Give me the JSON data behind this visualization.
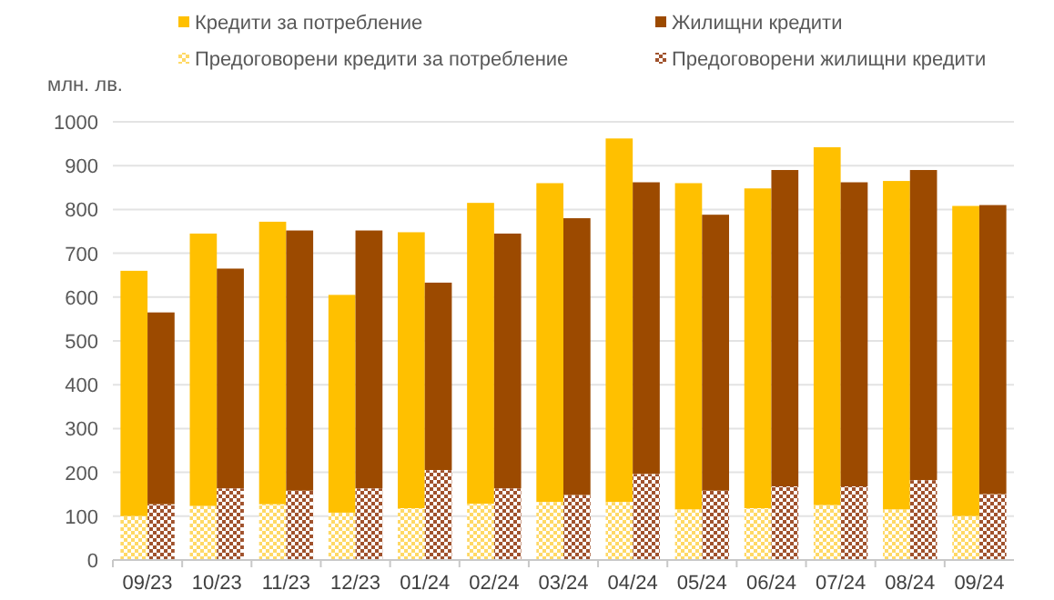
{
  "chart_data": {
    "type": "bar",
    "ylabel": "млн. лв.",
    "categories": [
      "09/23",
      "10/23",
      "11/23",
      "12/23",
      "01/24",
      "02/24",
      "03/24",
      "04/24",
      "05/24",
      "06/24",
      "07/24",
      "08/24",
      "09/24"
    ],
    "series": [
      {
        "name": "Кредити за потребление",
        "color": "#ffc000",
        "base": [
          100,
          123,
          127,
          108,
          118,
          128,
          132,
          132,
          115,
          118,
          125,
          115,
          100
        ],
        "values": [
          560,
          622,
          645,
          497,
          630,
          687,
          728,
          830,
          745,
          730,
          817,
          750,
          708
        ]
      },
      {
        "name": "Жилищни кредити",
        "color": "#9c4a00",
        "base": [
          127,
          163,
          158,
          163,
          205,
          163,
          148,
          196,
          158,
          168,
          168,
          182,
          150
        ],
        "values": [
          438,
          502,
          594,
          589,
          428,
          582,
          632,
          666,
          630,
          722,
          694,
          708,
          660
        ]
      },
      {
        "name": "Предоговорени кредити за потребление",
        "color": "#ffd966",
        "values": [
          100,
          123,
          127,
          108,
          118,
          128,
          132,
          132,
          115,
          118,
          125,
          115,
          100
        ]
      },
      {
        "name": "Предоговорени жилищни кредити",
        "color": "#a0522d",
        "values": [
          127,
          163,
          158,
          163,
          205,
          163,
          148,
          196,
          158,
          168,
          168,
          182,
          150
        ]
      }
    ],
    "ylim": [
      0,
      1000
    ],
    "yticks": [
      0,
      100,
      200,
      300,
      400,
      500,
      600,
      700,
      800,
      900,
      1000
    ],
    "grid": "y",
    "legend": "top"
  }
}
